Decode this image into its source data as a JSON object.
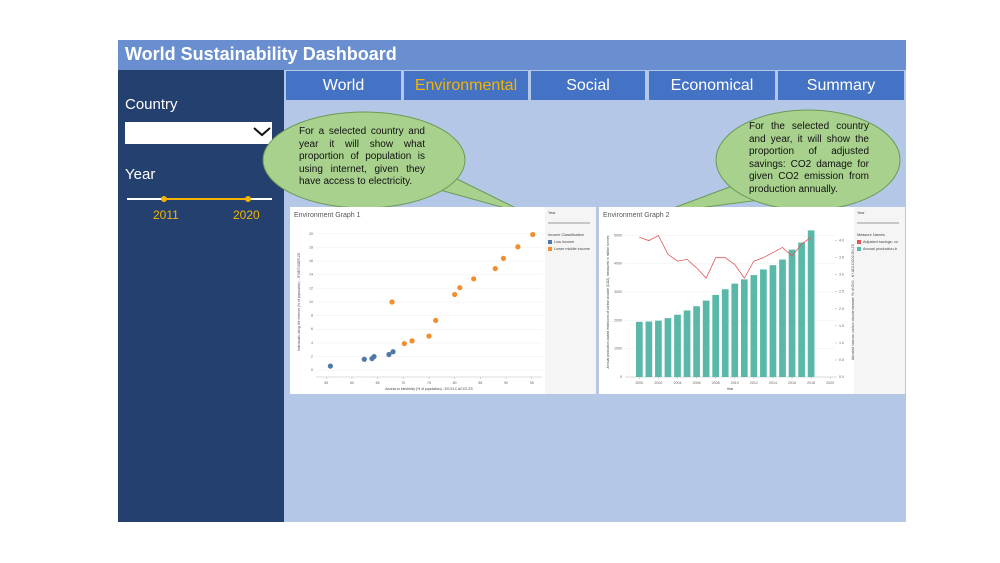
{
  "header": {
    "title": "World Sustainability Dashboard"
  },
  "sidebar": {
    "country_label": "Country",
    "year_label": "Year",
    "year_range": [
      2011,
      2020
    ]
  },
  "tabs": [
    "World",
    "Environmental",
    "Social",
    "Economical",
    "Summary"
  ],
  "active_tab": 1,
  "callouts": [
    {
      "text": "For a selected country and year it will show what proportion of population is using internet, given they have access to electricity."
    },
    {
      "text": "For the selected country and year, it will show the proportion of adjusted savings: CO2 damage for given CO2 emission from production annually."
    }
  ],
  "chart_data": [
    {
      "type": "scatter",
      "title": "Environment Graph 1",
      "x_label": "Access to electricity (% of population) - EG.ELC.ACCS.ZS",
      "y_label": "Individuals using the Internet (% of population) - IT.NET.USER.ZS",
      "legend_title": "Income Classification",
      "filter_title": "Year",
      "xlim": [
        53,
        97
      ],
      "xticks": [
        55,
        60,
        65,
        70,
        75,
        80,
        85,
        90,
        95
      ],
      "ylim": [
        -1,
        21
      ],
      "yticks": [
        0,
        2,
        4,
        6,
        8,
        10,
        12,
        14,
        16,
        18,
        20
      ],
      "grid": true,
      "series": [
        {
          "name": "Low income",
          "color": "#4e79a7",
          "x": [
            55.8,
            62.4,
            63.9,
            64.3,
            67.2,
            68.0
          ],
          "values": [
            0.6,
            1.6,
            1.7,
            2.0,
            2.3,
            2.7
          ]
        },
        {
          "name": "Lower middle income",
          "color": "#f28e2b",
          "x": [
            67.8,
            70.2,
            71.7,
            75.0,
            76.3,
            80.0,
            81.0,
            83.7,
            87.9,
            89.5,
            92.3,
            95.2
          ],
          "values": [
            10.0,
            3.9,
            4.3,
            5.0,
            7.3,
            11.1,
            12.1,
            13.4,
            14.9,
            16.4,
            18.1,
            19.9
          ]
        }
      ]
    },
    {
      "type": "combo",
      "title": "Environment Graph 2",
      "x_label": "Year",
      "y_label": "Annual production-based emissions of carbon dioxide (CO2), measured in million tonnes",
      "y2_label": "Adjusted savings: carbon dioxide damage (% of GNI) - NY.ADJ.DCO2.GN.ZS",
      "legend_title": "Measure Names",
      "filter_title": "Year",
      "x": [
        2000,
        2001,
        2002,
        2003,
        2004,
        2005,
        2006,
        2007,
        2008,
        2009,
        2010,
        2011,
        2012,
        2013,
        2014,
        2015,
        2016,
        2017,
        2018
      ],
      "xlim": [
        1998.5,
        2020.5
      ],
      "xticks": [
        2000,
        2002,
        2004,
        2006,
        2008,
        2010,
        2012,
        2014,
        2016,
        2018,
        2020
      ],
      "ylim": [
        0,
        5300
      ],
      "yticks": [
        0,
        1000,
        2000,
        3000,
        4000,
        5000
      ],
      "y2lim": [
        0,
        4.4
      ],
      "y2ticks": [
        {
          "value": 0,
          "label": "0.0"
        },
        {
          "value": 0.5,
          "label": "0.5"
        },
        {
          "value": 1,
          "label": "1.0"
        },
        {
          "value": 1.5,
          "label": "1.5"
        },
        {
          "value": 2,
          "label": "2.0"
        },
        {
          "value": 2.5,
          "label": "2.5"
        },
        {
          "value": 3,
          "label": "3.0"
        },
        {
          "value": 3.5,
          "label": "3.5"
        },
        {
          "value": 4,
          "label": "4.0"
        }
      ],
      "grid": true,
      "series": [
        {
          "name": "Adjusted savings: co",
          "color": "#e15759",
          "kind": "line",
          "axis": "y2",
          "values": [
            4.1,
            4.0,
            4.15,
            3.6,
            3.4,
            3.45,
            3.2,
            2.9,
            3.5,
            3.5,
            3.3,
            2.9,
            3.4,
            3.5,
            3.65,
            3.8,
            3.55,
            3.9,
            4.1
          ]
        },
        {
          "name": "Annual production-b",
          "color": "#59b8a8",
          "kind": "bar",
          "values": [
            1950,
            1960,
            1990,
            2080,
            2200,
            2350,
            2500,
            2700,
            2900,
            3100,
            3300,
            3450,
            3600,
            3800,
            3950,
            4150,
            4500,
            4750,
            5180
          ]
        }
      ]
    }
  ]
}
